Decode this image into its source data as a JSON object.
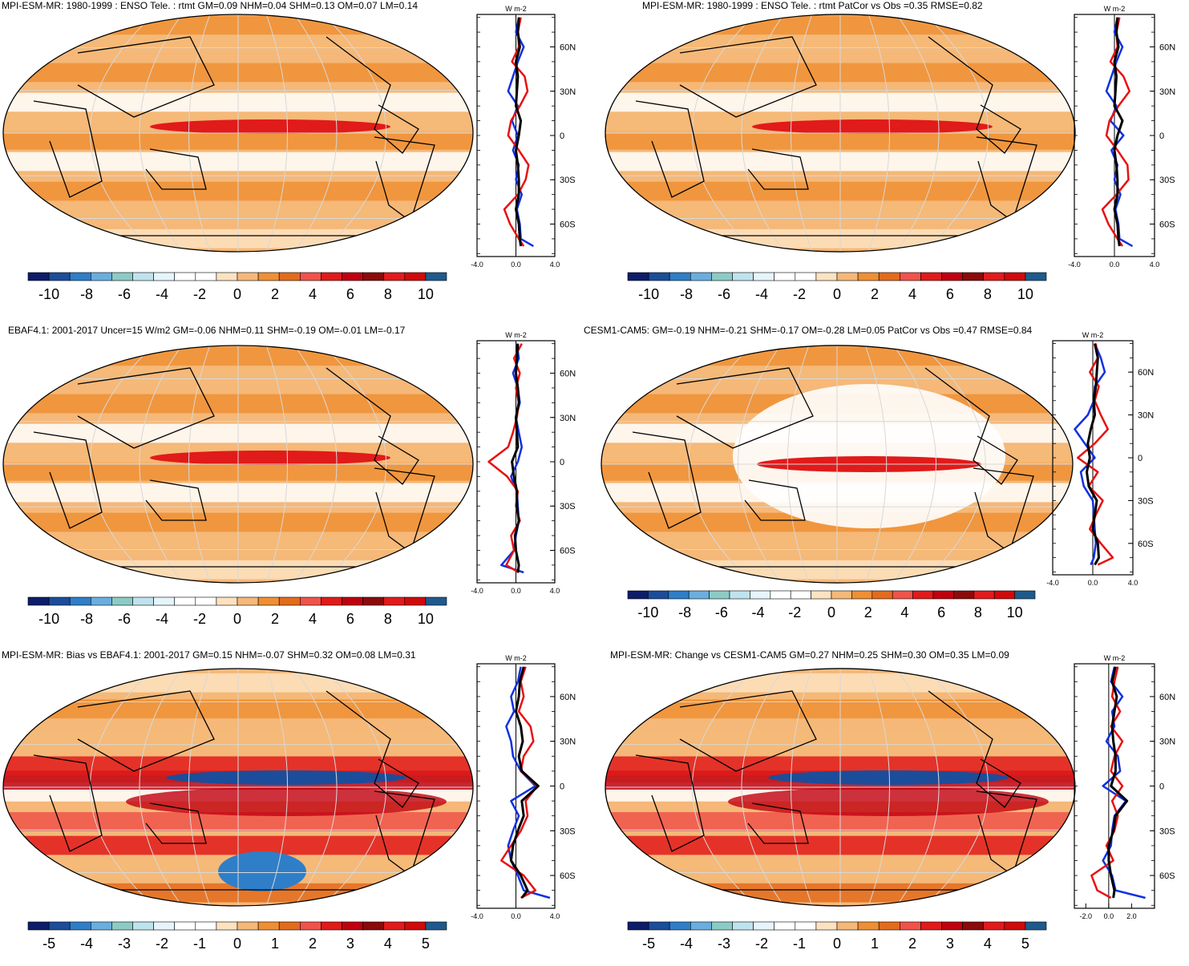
{
  "figure": {
    "unit_label": "W m-2",
    "legend_colors": [
      "#0d1d6a",
      "#1c4d9a",
      "#2f7ec8",
      "#6aaede",
      "#8ccbc5",
      "#bfe3ee",
      "#e6f5fb",
      "#ffffff",
      "#ffffff",
      "#fde2c0",
      "#f5b878",
      "#ef8f34",
      "#e36b1c",
      "#f0534a",
      "#e11a1a",
      "#c0000f",
      "#8b0a0a",
      "#e31a1c",
      "#d00a0a",
      "#1f5a8c"
    ]
  },
  "chart_data": [
    {
      "type": "map+zonal-profile",
      "title": "MPI-ESM-MR: 1980-1999 : ENSO Tele. : rtmt GM=0.09 NHM=0.04 SHM=0.13 OM=0.07 LM=0.14",
      "colorbar_ticks": [
        "-10",
        "-8",
        "-6",
        "-4",
        "-2",
        "0",
        "2",
        "4",
        "6",
        "8",
        "10"
      ],
      "lat_ticks": [
        "60N",
        "30N",
        "0",
        "30S",
        "60S"
      ],
      "profile_xticks": [
        "-4.0",
        "0.0",
        "4.0"
      ],
      "profile_xlim": [
        -4,
        4
      ],
      "series": [
        {
          "name": "blue",
          "color": "#1030e0",
          "lat": [
            80,
            70,
            60,
            50,
            40,
            30,
            20,
            10,
            0,
            -10,
            -20,
            -30,
            -40,
            -50,
            -60,
            -70,
            -75
          ],
          "values": [
            0.3,
            0.0,
            0.8,
            0.2,
            -0.3,
            -0.8,
            0.2,
            -0.4,
            0.2,
            -0.3,
            0.3,
            0.0,
            0.6,
            0.1,
            0.4,
            0.5,
            1.8
          ]
        },
        {
          "name": "red",
          "color": "#e81010",
          "lat": [
            80,
            70,
            60,
            50,
            40,
            30,
            20,
            10,
            0,
            -10,
            -20,
            -30,
            -40,
            -50,
            -60,
            -70,
            -75
          ],
          "values": [
            0.5,
            0.2,
            0.3,
            -0.4,
            0.9,
            1.2,
            0.4,
            -0.5,
            -0.8,
            0.3,
            1.3,
            1.0,
            0.2,
            -1.2,
            -0.6,
            0.3,
            0.8
          ]
        },
        {
          "name": "black",
          "color": "#000000",
          "lat": [
            80,
            70,
            60,
            50,
            40,
            30,
            20,
            10,
            0,
            -10,
            -20,
            -30,
            -40,
            -50,
            -60,
            -70,
            -75
          ],
          "values": [
            0.3,
            0.2,
            0.4,
            0.0,
            0.2,
            0.1,
            0.0,
            0.5,
            0.3,
            0.0,
            0.2,
            0.3,
            0.3,
            0.0,
            0.3,
            0.4,
            0.5
          ]
        }
      ]
    },
    {
      "type": "map+zonal-profile",
      "title": "MPI-ESM-MR: 1980-1999 : ENSO Tele. : rtmt PatCor vs Obs =0.35 RMSE=0.82",
      "colorbar_ticks": [
        "-10",
        "-8",
        "-6",
        "-4",
        "-2",
        "0",
        "2",
        "4",
        "6",
        "8",
        "10"
      ],
      "lat_ticks": [
        "60N",
        "30N",
        "0",
        "30S",
        "60S"
      ],
      "profile_xticks": [
        "-4.0",
        "0.0",
        "4.0"
      ],
      "profile_xlim": [
        -4,
        4
      ],
      "series": [
        {
          "name": "blue",
          "color": "#1030e0",
          "lat": [
            80,
            70,
            60,
            50,
            40,
            30,
            20,
            10,
            0,
            -10,
            -20,
            -30,
            -40,
            -50,
            -60,
            -70,
            -75
          ],
          "values": [
            0.3,
            0.0,
            0.8,
            0.2,
            -0.3,
            -0.8,
            0.2,
            -0.4,
            0.9,
            -0.3,
            0.3,
            0.0,
            0.6,
            0.1,
            0.4,
            0.5,
            1.8
          ]
        },
        {
          "name": "red",
          "color": "#e81010",
          "lat": [
            80,
            70,
            60,
            50,
            40,
            30,
            20,
            10,
            0,
            -10,
            -20,
            -30,
            -40,
            -50,
            -60,
            -70,
            -75
          ],
          "values": [
            0.5,
            0.2,
            0.3,
            -0.4,
            0.9,
            1.5,
            0.4,
            -0.5,
            -0.8,
            0.3,
            1.3,
            1.4,
            0.2,
            -1.2,
            -0.6,
            0.3,
            0.8
          ]
        },
        {
          "name": "black",
          "color": "#000000",
          "lat": [
            80,
            70,
            60,
            50,
            40,
            30,
            20,
            10,
            0,
            -10,
            -20,
            -30,
            -40,
            -50,
            -60,
            -70,
            -75
          ],
          "values": [
            0.3,
            0.2,
            0.4,
            0.0,
            0.2,
            0.1,
            0.0,
            0.8,
            0.3,
            0.0,
            0.2,
            0.3,
            0.3,
            0.0,
            0.3,
            0.4,
            0.5
          ]
        }
      ]
    },
    {
      "type": "map+zonal-profile",
      "title": "EBAF4.1: 2001-2017 Uncer=15 W/m2 GM=-0.06 NHM=0.11 SHM=-0.19 OM=-0.01 LM=-0.17",
      "colorbar_ticks": [
        "-10",
        "-8",
        "-6",
        "-4",
        "-2",
        "0",
        "2",
        "4",
        "6",
        "8",
        "10"
      ],
      "lat_ticks": [
        "60N",
        "30N",
        "0",
        "30S",
        "60S"
      ],
      "profile_xticks": [
        "-4.0",
        "0.0",
        "4.0"
      ],
      "profile_xlim": [
        -4,
        4
      ],
      "series": [
        {
          "name": "blue",
          "color": "#1030e0",
          "lat": [
            80,
            70,
            60,
            50,
            40,
            30,
            20,
            10,
            0,
            -10,
            -20,
            -30,
            -40,
            -50,
            -60,
            -70,
            -75
          ],
          "values": [
            0.1,
            0.3,
            -0.3,
            0.2,
            0.4,
            0.0,
            0.3,
            0.6,
            0.2,
            -0.5,
            0.1,
            0.2,
            0.3,
            0.0,
            -0.2,
            -1.5,
            0.8
          ]
        },
        {
          "name": "red",
          "color": "#e81010",
          "lat": [
            80,
            70,
            60,
            50,
            40,
            30,
            20,
            10,
            0,
            -10,
            -20,
            -30,
            -40,
            -50,
            -60,
            -70,
            -75
          ],
          "values": [
            0.6,
            -0.2,
            0.4,
            0.0,
            0.3,
            0.1,
            -0.3,
            -0.8,
            -2.8,
            -0.9,
            0.2,
            0.0,
            0.4,
            -0.5,
            -0.2,
            -1.0,
            0.3
          ]
        },
        {
          "name": "black",
          "color": "#000000",
          "lat": [
            80,
            70,
            60,
            50,
            40,
            30,
            20,
            10,
            0,
            -10,
            -20,
            -30,
            -40,
            -50,
            -60,
            -70,
            -75
          ],
          "values": [
            0.2,
            0.1,
            0.0,
            0.2,
            0.3,
            0.0,
            0.1,
            0.2,
            -0.4,
            -0.2,
            0.1,
            0.1,
            0.3,
            -0.1,
            0.0,
            0.3,
            0.2
          ]
        }
      ]
    },
    {
      "type": "map+zonal-profile",
      "title": "CESM1-CAM5: GM=-0.19 NHM=-0.21 SHM=-0.17 OM=-0.28 LM=0.05 PatCor vs Obs =0.47 RMSE=0.84",
      "colorbar_ticks": [
        "-10",
        "-8",
        "-6",
        "-4",
        "-2",
        "0",
        "2",
        "4",
        "6",
        "8",
        "10"
      ],
      "lat_ticks": [
        "60N",
        "30N",
        "0",
        "30S",
        "60S"
      ],
      "profile_xticks": [
        "-4.0",
        "0.0",
        "4.0"
      ],
      "profile_xlim": [
        -4,
        4
      ],
      "series": [
        {
          "name": "blue",
          "color": "#1030e0",
          "lat": [
            80,
            70,
            60,
            50,
            40,
            30,
            20,
            10,
            0,
            -10,
            -20,
            -30,
            -40,
            -50,
            -60,
            -70,
            -75
          ],
          "values": [
            0.2,
            0.8,
            1.2,
            0.2,
            0.1,
            -0.5,
            -1.8,
            -0.8,
            0.2,
            -1.2,
            -0.9,
            0.0,
            0.1,
            0.2,
            0.3,
            0.1,
            -0.2
          ]
        },
        {
          "name": "red",
          "color": "#e81010",
          "lat": [
            80,
            70,
            60,
            50,
            40,
            30,
            20,
            10,
            0,
            -10,
            -20,
            -30,
            -40,
            -50,
            -60,
            -70,
            -75
          ],
          "values": [
            0.3,
            0.5,
            -0.3,
            0.6,
            0.2,
            0.8,
            1.5,
            0.2,
            -1.5,
            0.5,
            -0.4,
            1.0,
            0.3,
            -0.3,
            0.8,
            2.0,
            0.5
          ]
        },
        {
          "name": "black",
          "color": "#000000",
          "lat": [
            80,
            70,
            60,
            50,
            40,
            30,
            20,
            10,
            0,
            -10,
            -20,
            -30,
            -40,
            -50,
            -60,
            -70,
            -75
          ],
          "values": [
            0.2,
            0.5,
            0.4,
            0.3,
            0.1,
            0.2,
            -0.2,
            -0.5,
            -0.3,
            -0.6,
            -0.4,
            0.4,
            0.2,
            0.0,
            0.5,
            0.6,
            0.2
          ]
        }
      ]
    },
    {
      "type": "map+zonal-profile",
      "title": "MPI-ESM-MR: Bias vs EBAF4.1: 2001-2017 GM=0.15 NHM=-0.07 SHM=0.32 OM=0.08 LM=0.31",
      "colorbar_ticks": [
        "-5",
        "-4",
        "-3",
        "-2",
        "-1",
        "0",
        "1",
        "2",
        "3",
        "4",
        "5"
      ],
      "lat_ticks": [
        "60N",
        "30N",
        "0",
        "30S",
        "60S"
      ],
      "profile_xticks": [
        "-4.0",
        "0.0",
        "4.0"
      ],
      "profile_xlim": [
        -4,
        4
      ],
      "series": [
        {
          "name": "blue",
          "color": "#1030e0",
          "lat": [
            80,
            70,
            60,
            50,
            40,
            30,
            20,
            10,
            0,
            -10,
            -20,
            -30,
            -40,
            -50,
            -60,
            -70,
            -75
          ],
          "values": [
            0.5,
            0.2,
            -0.5,
            -0.2,
            -1.0,
            -0.5,
            -0.3,
            0.5,
            2.0,
            -0.5,
            0.3,
            -0.3,
            -0.8,
            -0.5,
            0.2,
            0.8,
            3.5
          ]
        },
        {
          "name": "red",
          "color": "#e81010",
          "lat": [
            80,
            70,
            60,
            50,
            40,
            30,
            20,
            10,
            0,
            -10,
            -20,
            -30,
            -40,
            -50,
            -60,
            -70,
            -75
          ],
          "values": [
            1.0,
            0.5,
            0.8,
            0.3,
            1.5,
            1.8,
            0.8,
            0.5,
            2.2,
            1.0,
            1.2,
            0.5,
            -0.5,
            -1.5,
            0.8,
            2.0,
            0.5
          ]
        },
        {
          "name": "black",
          "color": "#000000",
          "lat": [
            80,
            70,
            60,
            50,
            40,
            30,
            20,
            10,
            0,
            -10,
            -20,
            -30,
            -40,
            -50,
            -60,
            -70,
            -75
          ],
          "values": [
            0.8,
            0.4,
            0.3,
            0.0,
            0.5,
            0.7,
            0.3,
            0.6,
            2.3,
            0.6,
            0.8,
            0.2,
            -0.3,
            -0.5,
            0.5,
            1.2,
            0.6
          ]
        }
      ]
    },
    {
      "type": "map+zonal-profile",
      "title": "MPI-ESM-MR: Change vs CESM1-CAM5 GM=0.27 NHM=0.25 SHM=0.30 OM=0.35 LM=0.09",
      "colorbar_ticks": [
        "-5",
        "-4",
        "-3",
        "-2",
        "-1",
        "0",
        "1",
        "2",
        "3",
        "4",
        "5"
      ],
      "lat_ticks": [
        "60N",
        "30N",
        "0",
        "30S",
        "60S"
      ],
      "profile_xticks": [
        "-2.0",
        "0.0",
        "2.0"
      ],
      "profile_xlim": [
        -3,
        4
      ],
      "series": [
        {
          "name": "blue",
          "color": "#1030e0",
          "lat": [
            80,
            70,
            60,
            50,
            40,
            30,
            20,
            10,
            0,
            -10,
            -20,
            -30,
            -40,
            -50,
            -60,
            -70,
            -75
          ],
          "values": [
            0.5,
            0.2,
            1.2,
            0.3,
            0.5,
            -0.2,
            0.8,
            1.0,
            -0.5,
            1.5,
            0.5,
            0.3,
            0.2,
            -0.5,
            0.3,
            0.6,
            3.2
          ]
        },
        {
          "name": "red",
          "color": "#e81010",
          "lat": [
            80,
            70,
            60,
            50,
            40,
            30,
            20,
            10,
            0,
            -10,
            -20,
            -30,
            -40,
            -50,
            -60,
            -70,
            -75
          ],
          "values": [
            0.8,
            0.5,
            0.3,
            1.0,
            0.2,
            1.2,
            0.5,
            0.2,
            1.2,
            0.3,
            0.8,
            0.5,
            -0.2,
            0.4,
            -1.5,
            -1.0,
            0.2
          ]
        },
        {
          "name": "black",
          "color": "#000000",
          "lat": [
            80,
            70,
            60,
            50,
            40,
            30,
            20,
            10,
            0,
            -10,
            -20,
            -30,
            -40,
            -50,
            -60,
            -70,
            -75
          ],
          "values": [
            0.6,
            0.3,
            0.7,
            0.5,
            0.3,
            0.4,
            0.6,
            0.6,
            0.2,
            1.6,
            0.6,
            0.4,
            0.0,
            0.0,
            0.2,
            0.5,
            0.4
          ]
        }
      ]
    }
  ]
}
